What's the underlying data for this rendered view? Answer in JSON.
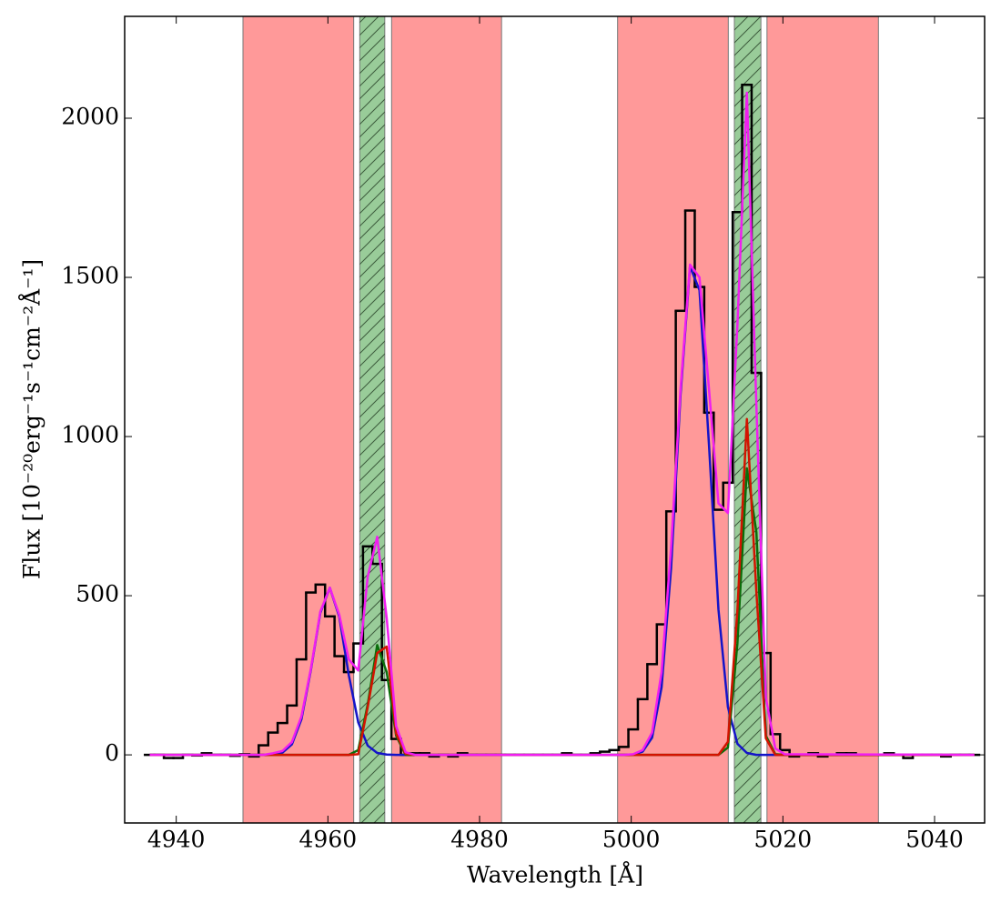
{
  "chart_data": {
    "type": "line",
    "xlabel": "Wavelength [Å]",
    "ylabel": "Flux [10⁻²⁰erg⁻¹s⁻¹cm⁻²Å⁻¹]",
    "xlim": [
      4933.2,
      5046.6
    ],
    "ylim": [
      -214,
      2320
    ],
    "xticks": [
      4940,
      4960,
      4980,
      5000,
      5020,
      5040
    ],
    "yticks": [
      0,
      500,
      1000,
      1500,
      2000
    ],
    "regions": [
      {
        "xmin": 4948.8,
        "xmax": 4963.4,
        "color": "#ff9999",
        "hatch": false
      },
      {
        "xmin": 4964.2,
        "xmax": 4967.5,
        "color": "#99cc99",
        "hatch": true
      },
      {
        "xmin": 4968.4,
        "xmax": 4982.9,
        "color": "#ff9999",
        "hatch": false
      },
      {
        "xmin": 4998.2,
        "xmax": 5012.8,
        "color": "#ff9999",
        "hatch": false
      },
      {
        "xmin": 5013.6,
        "xmax": 5017.1,
        "color": "#99cc99",
        "hatch": true
      },
      {
        "xmin": 5017.9,
        "xmax": 5032.6,
        "color": "#ff9999",
        "hatch": false
      }
    ],
    "series": [
      {
        "style": "step",
        "color": "#000000",
        "x": [
          4936.5,
          4937.75,
          4939,
          4940.25,
          4941.5,
          4942.75,
          4944,
          4945.25,
          4946.5,
          4947.75,
          4949,
          4950.25,
          4951.5,
          4952.75,
          4954,
          4955.25,
          4956.5,
          4957.75,
          4959,
          4960.25,
          4961.5,
          4962.75,
          4964,
          4965.25,
          4966.5,
          4967.75,
          4969,
          4970.25,
          4971.5,
          4972.75,
          4974,
          4975.25,
          4976.5,
          4977.75,
          4979,
          4980.25,
          4981.5,
          4982.75,
          4984,
          4985.25,
          4986.5,
          4987.75,
          4989,
          4990.25,
          4991.5,
          4992.75,
          4994,
          4995.25,
          4996.5,
          4997.75,
          4999,
          5000.25,
          5001.5,
          5002.75,
          5004,
          5005.25,
          5006.5,
          5007.75,
          5009,
          5010.25,
          5011.5,
          5012.75,
          5014,
          5015.25,
          5016.5,
          5017.75,
          5019,
          5020.25,
          5021.5,
          5022.75,
          5024,
          5025.25,
          5026.5,
          5027.75,
          5029,
          5030.25,
          5031.5,
          5032.75,
          5034,
          5035.25,
          5036.5,
          5037.75,
          5039,
          5040.25,
          5041.5,
          5042.75,
          5044,
          5045.25
        ],
        "values": [
          0,
          0,
          -10,
          -10,
          0,
          -2,
          5,
          0,
          0,
          -3,
          2,
          -5,
          30,
          70,
          100,
          155,
          300,
          510,
          535,
          435,
          310,
          260,
          350,
          655,
          600,
          235,
          50,
          0,
          5,
          5,
          -5,
          0,
          -5,
          5,
          0,
          0,
          0,
          0,
          0,
          0,
          0,
          0,
          0,
          0,
          5,
          0,
          0,
          5,
          10,
          15,
          25,
          80,
          175,
          285,
          410,
          765,
          1395,
          1710,
          1470,
          1075,
          770,
          855,
          1705,
          2105,
          1200,
          320,
          65,
          15,
          -5,
          0,
          5,
          -5,
          0,
          5,
          5,
          0,
          0,
          0,
          5,
          0,
          -10,
          0,
          0,
          0,
          -5,
          0,
          0,
          0
        ]
      },
      {
        "style": "line",
        "color": "#1414c8",
        "x": [
          4936.5,
          4951.5,
          4952.75,
          4954,
          4955.25,
          4956.5,
          4957.75,
          4959,
          4960.25,
          4961.5,
          4962.75,
          4964,
          4965.25,
          4966.5,
          4967.75,
          4969,
          4999,
          5000.25,
          5001.5,
          5002.75,
          5004,
          5005.25,
          5006.5,
          5007.75,
          5009,
          5010.25,
          5011.5,
          5012.75,
          5014,
          5015.25,
          5016.5,
          5017.75,
          5045.25
        ],
        "values": [
          0,
          0,
          1,
          7,
          33,
          111,
          266,
          446,
          525,
          434,
          251,
          102,
          29,
          6,
          1,
          0,
          0,
          1,
          10,
          54,
          212,
          585,
          1131,
          1534,
          1460,
          975,
          457,
          150,
          35,
          6,
          0,
          0,
          0
        ]
      },
      {
        "style": "line",
        "color": "#0a6e0a",
        "x": [
          4936.5,
          4962.75,
          4964,
          4965.25,
          4966.5,
          4967.75,
          4969,
          4970.25,
          5011.5,
          5012.75,
          5014,
          5015.25,
          5016.5,
          5017.75,
          5019,
          5020.25,
          5045.25
        ],
        "values": [
          0,
          0,
          15,
          158,
          345,
          260,
          60,
          0,
          0,
          23,
          350,
          900,
          700,
          60,
          2,
          0,
          0
        ]
      },
      {
        "style": "line",
        "color": "#d21400",
        "x": [
          4936.5,
          4962.75,
          4964,
          4965.25,
          4966.5,
          4967.75,
          4969,
          4970.25,
          4971.5,
          5011.5,
          5012.75,
          5014,
          5015.25,
          5016.5,
          5017.75,
          5019,
          5045.25
        ],
        "values": [
          0,
          0,
          2,
          150,
          320,
          340,
          67,
          3,
          0,
          0,
          41,
          453,
          1055,
          513,
          52,
          0,
          0
        ]
      },
      {
        "style": "line",
        "color": "#f01ef0",
        "x": [
          4936.5,
          4951.5,
          4952.75,
          4954,
          4955.25,
          4956.5,
          4957.75,
          4959,
          4960.25,
          4961.5,
          4962.75,
          4964,
          4965.25,
          4966.5,
          4967.75,
          4969,
          4970.25,
          4971.5,
          4999,
          5000.25,
          5001.5,
          5002.75,
          5004,
          5005.25,
          5006.5,
          5007.75,
          5009,
          5010.25,
          5011.5,
          5012.75,
          5014,
          5015.25,
          5016.5,
          5017.75,
          5019,
          5020.25,
          5045.25
        ],
        "values": [
          0,
          0,
          5,
          12,
          40,
          120,
          270,
          450,
          525,
          440,
          300,
          265,
          560,
          685,
          430,
          90,
          8,
          0,
          0,
          2,
          15,
          70,
          260,
          650,
          1150,
          1540,
          1500,
          1150,
          790,
          760,
          1350,
          2080,
          1100,
          180,
          20,
          2,
          0
        ]
      }
    ]
  }
}
